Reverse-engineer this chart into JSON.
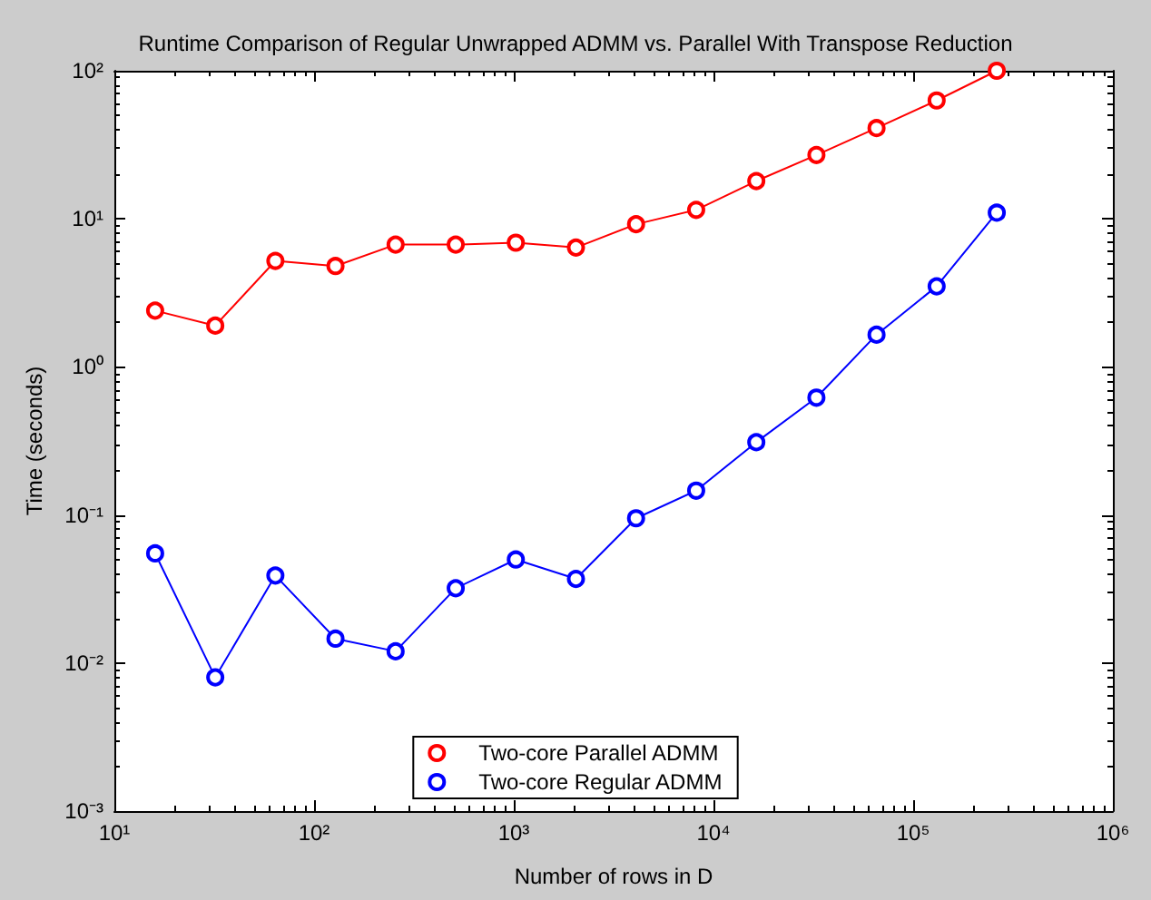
{
  "chart_data": {
    "type": "line",
    "title": "Runtime Comparison of Regular Unwrapped ADMM vs. Parallel With Transpose Reduction",
    "xlabel": "Number of rows in D",
    "ylabel": "Time (seconds)",
    "x": [
      16,
      32,
      64,
      128,
      256,
      512,
      1024,
      2048,
      4096,
      8192,
      16384,
      32768,
      65536,
      131072,
      262144
    ],
    "series": [
      {
        "name": "Two-core Parallel ADMM",
        "color": "#ff0000",
        "values": [
          2.4,
          1.9,
          5.2,
          4.8,
          6.7,
          6.7,
          6.9,
          6.4,
          9.2,
          11.5,
          18,
          27,
          41,
          63,
          100
        ]
      },
      {
        "name": "Two-core Regular ADMM",
        "color": "#0000ff",
        "values": [
          0.055,
          0.008,
          0.039,
          0.0146,
          0.012,
          0.032,
          0.05,
          0.037,
          0.095,
          0.146,
          0.31,
          0.62,
          1.65,
          3.5,
          11
        ]
      }
    ],
    "log": "xy",
    "marker": "circle",
    "line_style": "solid",
    "legend": "bottom",
    "grid": false,
    "xlim": [
      10,
      1000000
    ],
    "ylim": [
      0.001,
      100
    ],
    "xticks": [
      {
        "value": 10,
        "label": "10¹"
      },
      {
        "value": 100,
        "label": "10²"
      },
      {
        "value": 1000,
        "label": "10³"
      },
      {
        "value": 10000,
        "label": "10⁴"
      },
      {
        "value": 100000,
        "label": "10⁵"
      },
      {
        "value": 1000000,
        "label": "10⁶"
      }
    ],
    "yticks": [
      {
        "value": 0.001,
        "label": "10⁻³"
      },
      {
        "value": 0.01,
        "label": "10⁻²"
      },
      {
        "value": 0.1,
        "label": "10⁻¹"
      },
      {
        "value": 1,
        "label": "10⁰"
      },
      {
        "value": 10,
        "label": "10¹"
      },
      {
        "value": 100,
        "label": "10²"
      }
    ]
  }
}
